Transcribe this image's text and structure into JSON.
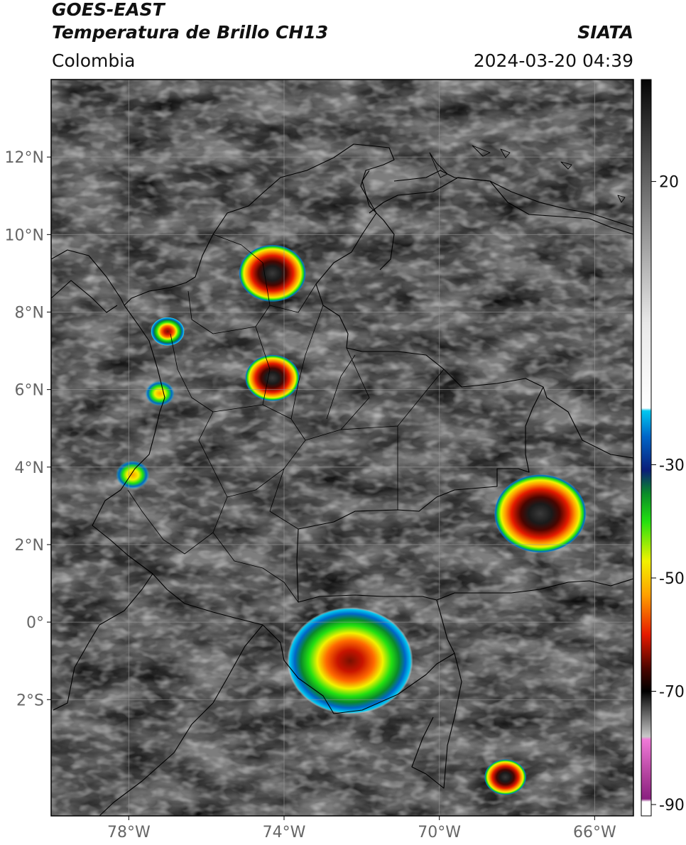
{
  "header": {
    "title_line1": "GOES-EAST",
    "title_line2": "Temperatura de Brillo CH13",
    "region": "Colombia",
    "agency": "SIATA",
    "datetime": "2024-03-20 04:39"
  },
  "map": {
    "lon_range": [
      -80,
      -65
    ],
    "lat_range": [
      -5,
      14
    ],
    "lon_ticks": [
      {
        "value": -78,
        "label": "78°W"
      },
      {
        "value": -74,
        "label": "74°W"
      },
      {
        "value": -70,
        "label": "70°W"
      },
      {
        "value": -66,
        "label": "66°W"
      }
    ],
    "lat_ticks": [
      {
        "value": 12,
        "label": "12°N"
      },
      {
        "value": 10,
        "label": "10°N"
      },
      {
        "value": 8,
        "label": "8°N"
      },
      {
        "value": 6,
        "label": "6°N"
      },
      {
        "value": 4,
        "label": "4°N"
      },
      {
        "value": 2,
        "label": "2°N"
      },
      {
        "value": 0,
        "label": "0°"
      },
      {
        "value": -2,
        "label": "2°S"
      }
    ],
    "storm_cells": [
      {
        "lon": -74.3,
        "lat": 9.0,
        "size": 1.6,
        "intensity": "strong"
      },
      {
        "lon": -74.3,
        "lat": 6.3,
        "size": 1.3,
        "intensity": "strong"
      },
      {
        "lon": -77.0,
        "lat": 7.5,
        "size": 0.8,
        "intensity": "moderate"
      },
      {
        "lon": -67.4,
        "lat": 2.8,
        "size": 2.2,
        "intensity": "strong"
      },
      {
        "lon": -72.3,
        "lat": -1.0,
        "size": 3.0,
        "intensity": "moderate"
      },
      {
        "lon": -68.3,
        "lat": -4.0,
        "size": 1.0,
        "intensity": "strong"
      },
      {
        "lon": -77.9,
        "lat": 3.8,
        "size": 0.8,
        "intensity": "weak"
      },
      {
        "lon": -77.2,
        "lat": 5.9,
        "size": 0.7,
        "intensity": "weak"
      }
    ]
  },
  "colorbar": {
    "ticks": [
      {
        "value": 20,
        "label": "20"
      },
      {
        "value": -30,
        "label": "-30"
      },
      {
        "value": -50,
        "label": "-50"
      },
      {
        "value": -70,
        "label": "-70"
      },
      {
        "value": -90,
        "label": "-90"
      }
    ],
    "range": [
      -92,
      38
    ],
    "stops": [
      {
        "value": 38,
        "color": "#050505"
      },
      {
        "value": 25,
        "color": "#4a4a4a"
      },
      {
        "value": 10,
        "color": "#9a9a9a"
      },
      {
        "value": -5,
        "color": "#e8e8e8"
      },
      {
        "value": -20,
        "color": "#ffffff"
      },
      {
        "value": -20.5,
        "color": "#00c8f0"
      },
      {
        "value": -25,
        "color": "#0066c8"
      },
      {
        "value": -31,
        "color": "#0b1e78"
      },
      {
        "value": -35,
        "color": "#0a8a2a"
      },
      {
        "value": -40,
        "color": "#22e010"
      },
      {
        "value": -47,
        "color": "#f2f200"
      },
      {
        "value": -53,
        "color": "#ffa000"
      },
      {
        "value": -60,
        "color": "#e51a00"
      },
      {
        "value": -66,
        "color": "#4a0500"
      },
      {
        "value": -70,
        "color": "#000000"
      },
      {
        "value": -78,
        "color": "#c8c8c8"
      },
      {
        "value": -78.5,
        "color": "#f07ad8"
      },
      {
        "value": -85,
        "color": "#b0409c"
      },
      {
        "value": -89,
        "color": "#8a2080"
      },
      {
        "value": -89.5,
        "color": "#ffffff"
      }
    ]
  }
}
